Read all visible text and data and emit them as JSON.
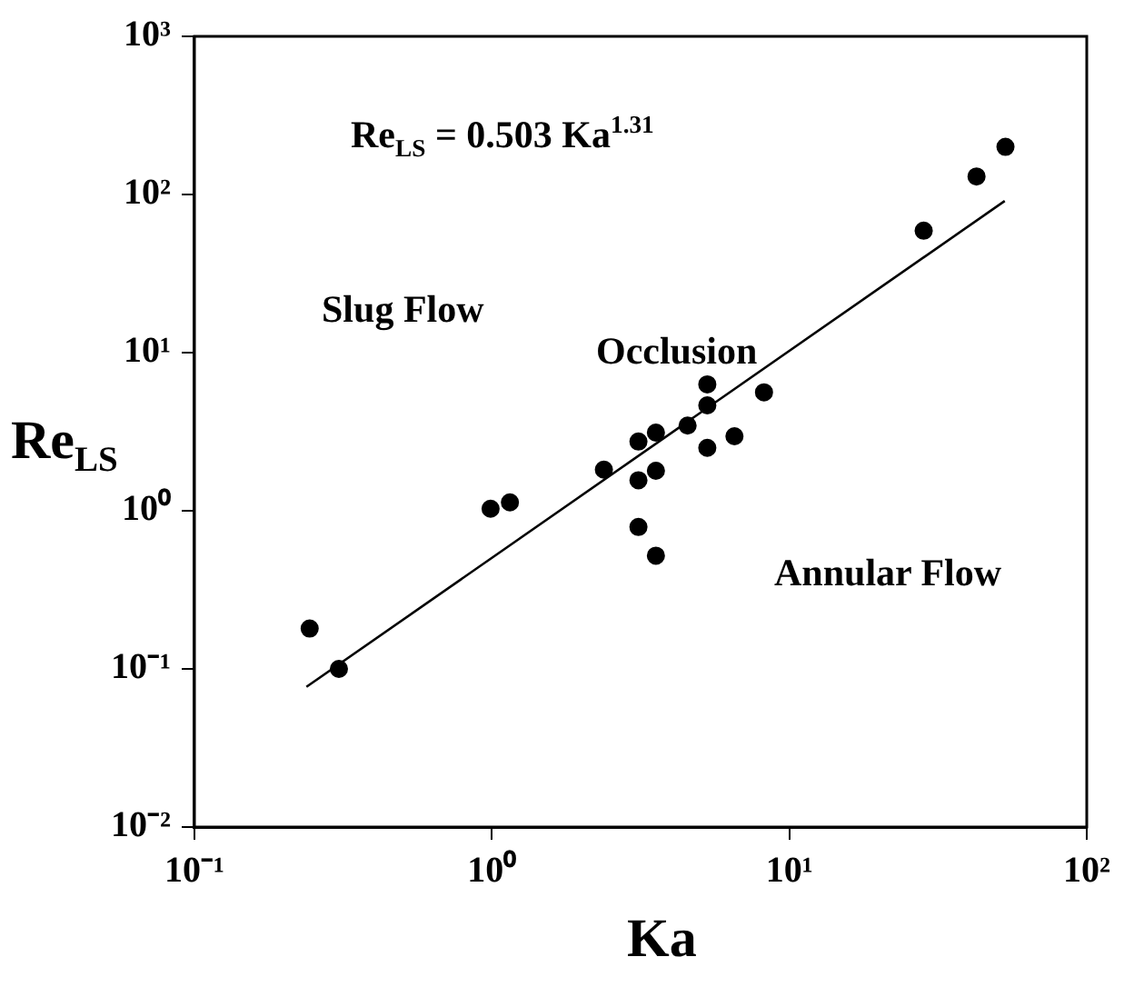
{
  "chart_data": {
    "type": "scatter",
    "xlabel": "Ka",
    "ylabel": "Re$_{LS}$",
    "log": "xy",
    "grid": false,
    "legend": false,
    "marker": "circle",
    "xlim": [
      0.1,
      100
    ],
    "ylim": [
      0.01,
      1000
    ],
    "xticks": [
      {
        "value": 0.1,
        "label": "10⁻¹"
      },
      {
        "value": 1,
        "label": "10⁰"
      },
      {
        "value": 10,
        "label": "10¹"
      },
      {
        "value": 100,
        "label": "10²"
      }
    ],
    "yticks": [
      {
        "value": 0.01,
        "label": "10⁻²"
      },
      {
        "value": 0.1,
        "label": "10⁻¹"
      },
      {
        "value": 1,
        "label": "10⁰"
      },
      {
        "value": 10,
        "label": "10¹"
      },
      {
        "value": 100,
        "label": "10²"
      },
      {
        "value": 1000,
        "label": "10³"
      }
    ],
    "annotations": [
      "Re$_{LS}$ = 0.503 Ka$^{1.31}$",
      "Slug Flow",
      "Occlusion",
      "Annular Flow"
    ],
    "series": [
      {
        "color": "#000000",
        "x": [
          0.244,
          0.306,
          0.99,
          1.15,
          2.38,
          3.11,
          3.56,
          3.11,
          3.56,
          3.11,
          3.56,
          4.55,
          5.3,
          5.3,
          5.3,
          6.54,
          8.22,
          28.3,
          42.6,
          53.3
        ],
        "values": [
          0.18,
          0.1,
          1.03,
          1.13,
          1.82,
          2.74,
          3.12,
          1.56,
          1.79,
          0.79,
          0.52,
          3.46,
          6.3,
          4.64,
          2.5,
          2.96,
          5.61,
          59,
          130,
          200
        ]
      },
      {
        "type": "line",
        "color": "#000000",
        "marker": "none",
        "line_style": "solid",
        "x": [
          0.238,
          53
        ],
        "values": [
          0.077,
          91
        ]
      }
    ]
  }
}
